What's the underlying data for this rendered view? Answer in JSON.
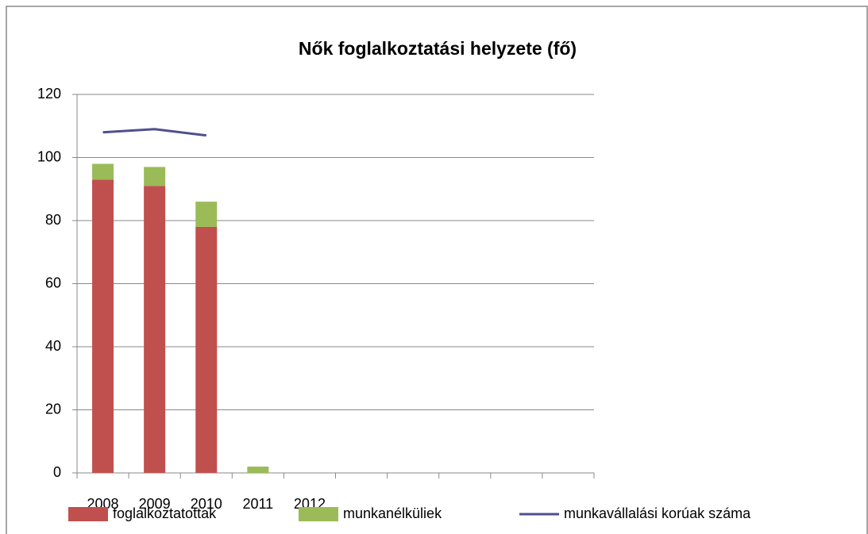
{
  "chart_data": {
    "type": "bar",
    "stacked": true,
    "title": "Nők foglalkoztatási helyzete (fő)",
    "categories": [
      "2008",
      "2009",
      "2010",
      "2011",
      "2012",
      null,
      null,
      null,
      null,
      null
    ],
    "series": [
      {
        "name": "foglalkoztatottak",
        "type": "bar",
        "color": "#c0504d",
        "values": [
          93,
          91,
          78,
          0,
          0,
          null,
          null,
          null,
          null,
          null
        ]
      },
      {
        "name": "munkanélküliek",
        "type": "bar",
        "color": "#9bbb59",
        "values": [
          5,
          6,
          8,
          2,
          0,
          null,
          null,
          null,
          null,
          null
        ]
      },
      {
        "name": "munkavállalási korúak száma",
        "type": "line",
        "color": "#4f4f8f",
        "values": [
          108,
          109,
          107,
          null,
          null,
          null,
          null,
          null,
          null,
          null
        ]
      }
    ],
    "ylim": [
      0,
      120
    ],
    "yticks": [
      0,
      20,
      40,
      60,
      80,
      100,
      120
    ],
    "grid": true,
    "legend": "bottom"
  }
}
